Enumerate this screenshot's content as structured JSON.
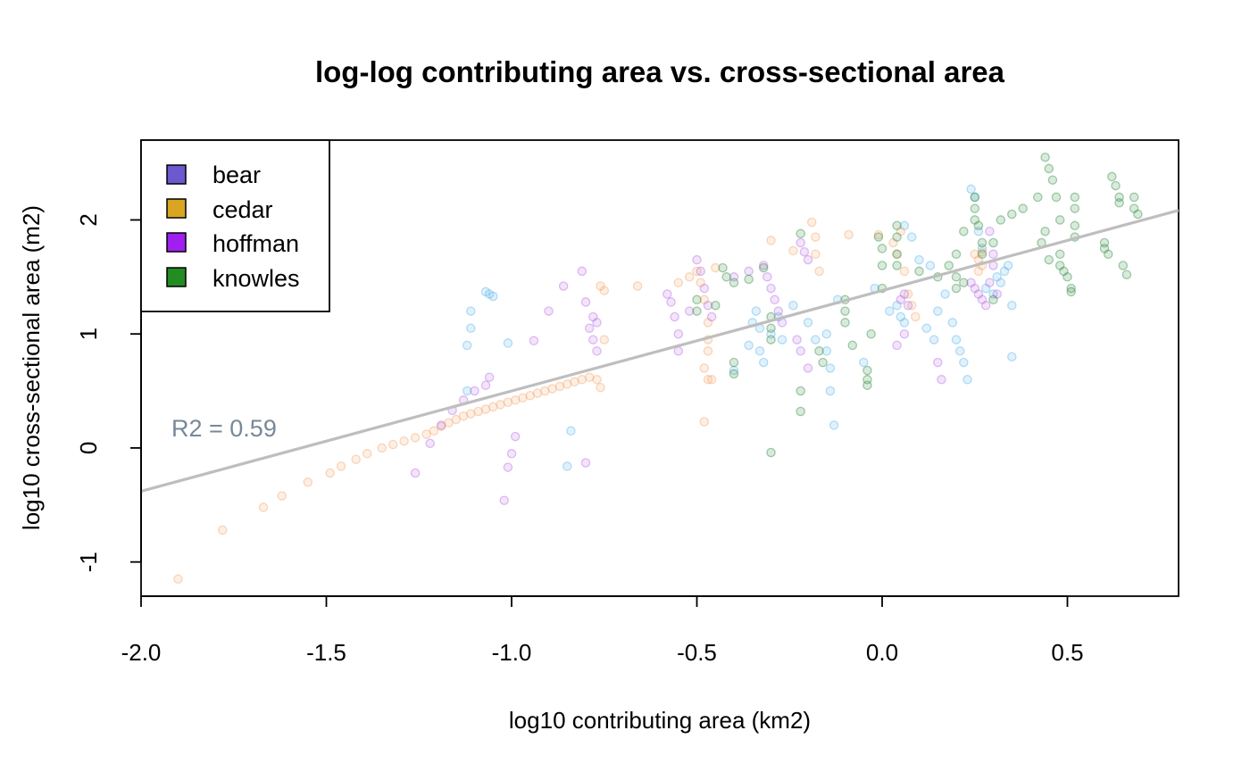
{
  "chart_data": {
    "type": "scatter",
    "title": "log-log contributing area vs. cross-sectional area",
    "xlabel": "log10 contributing area (km2)",
    "ylabel": "log10 cross-sectional area (m2)",
    "xlim": [
      -2.0,
      0.8
    ],
    "ylim": [
      -1.3,
      2.7
    ],
    "x_ticks": [
      -2.0,
      -1.5,
      -1.0,
      -0.5,
      0.0,
      0.5
    ],
    "x_tick_labels": [
      "-2.0",
      "-1.5",
      "-1.0",
      "-0.5",
      "0.0",
      "0.5"
    ],
    "y_ticks": [
      -1,
      0,
      1,
      2
    ],
    "y_tick_labels": [
      "-1",
      "0",
      "1",
      "2"
    ],
    "grid": false,
    "legend": {
      "position": "top-left",
      "entries": [
        {
          "label": "bear",
          "color": "#6A5ACD"
        },
        {
          "label": "cedar",
          "color": "#DAA520"
        },
        {
          "label": "hoffman",
          "color": "#A020F0"
        },
        {
          "label": "knowles",
          "color": "#228B22"
        }
      ]
    },
    "annotation": {
      "text": "R2 = 0.59",
      "color": "#778899"
    },
    "regression_line": {
      "intercept": 1.38,
      "slope": 0.88,
      "color": "#BEBEBE"
    },
    "point_alpha": 0.18,
    "series": [
      {
        "name": "bear",
        "color": "#56B4E9",
        "points": [
          [
            -1.07,
            1.37
          ],
          [
            -1.06,
            1.35
          ],
          [
            -1.05,
            1.33
          ],
          [
            -1.11,
            1.2
          ],
          [
            -1.11,
            1.05
          ],
          [
            -1.12,
            0.9
          ],
          [
            -1.01,
            0.92
          ],
          [
            -1.12,
            0.5
          ],
          [
            -0.84,
            0.15
          ],
          [
            -0.85,
            -0.16
          ],
          [
            -0.4,
            0.68
          ],
          [
            -0.36,
            0.9
          ],
          [
            -0.35,
            1.1
          ],
          [
            -0.34,
            1.2
          ],
          [
            -0.33,
            1.05
          ],
          [
            -0.33,
            0.85
          ],
          [
            -0.32,
            0.75
          ],
          [
            -0.3,
            1.0
          ],
          [
            -0.28,
            1.15
          ],
          [
            -0.27,
            0.95
          ],
          [
            -0.24,
            1.25
          ],
          [
            -0.2,
            1.1
          ],
          [
            -0.18,
            0.95
          ],
          [
            -0.15,
            1.0
          ],
          [
            -0.15,
            0.85
          ],
          [
            -0.14,
            0.7
          ],
          [
            -0.14,
            0.5
          ],
          [
            -0.13,
            0.2
          ],
          [
            -0.12,
            1.3
          ],
          [
            -0.05,
            0.75
          ],
          [
            0.02,
            1.2
          ],
          [
            0.04,
            1.25
          ],
          [
            0.05,
            1.15
          ],
          [
            0.06,
            1.1
          ],
          [
            0.08,
            1.85
          ],
          [
            0.1,
            1.65
          ],
          [
            0.12,
            1.05
          ],
          [
            0.14,
            0.95
          ],
          [
            0.15,
            1.2
          ],
          [
            0.17,
            1.35
          ],
          [
            0.19,
            1.1
          ],
          [
            0.2,
            0.95
          ],
          [
            0.21,
            0.85
          ],
          [
            0.22,
            0.75
          ],
          [
            0.23,
            0.6
          ],
          [
            0.24,
            2.27
          ],
          [
            0.25,
            2.2
          ],
          [
            0.26,
            1.9
          ],
          [
            0.27,
            1.75
          ],
          [
            0.28,
            1.4
          ],
          [
            0.3,
            1.35
          ],
          [
            0.31,
            1.5
          ],
          [
            0.32,
            1.45
          ],
          [
            0.33,
            1.55
          ],
          [
            0.34,
            1.6
          ],
          [
            0.35,
            1.25
          ],
          [
            0.35,
            0.8
          ],
          [
            0.06,
            1.95
          ],
          [
            -0.02,
            1.4
          ],
          [
            0.13,
            1.6
          ]
        ]
      },
      {
        "name": "cedar",
        "color": "#F4A46A",
        "points": [
          [
            -1.9,
            -1.15
          ],
          [
            -1.78,
            -0.72
          ],
          [
            -1.67,
            -0.52
          ],
          [
            -1.62,
            -0.42
          ],
          [
            -1.55,
            -0.3
          ],
          [
            -1.49,
            -0.22
          ],
          [
            -1.46,
            -0.16
          ],
          [
            -1.42,
            -0.1
          ],
          [
            -1.39,
            -0.05
          ],
          [
            -1.35,
            0.0
          ],
          [
            -1.32,
            0.03
          ],
          [
            -1.29,
            0.06
          ],
          [
            -1.26,
            0.09
          ],
          [
            -1.23,
            0.12
          ],
          [
            -1.21,
            0.15
          ],
          [
            -1.19,
            0.19
          ],
          [
            -1.17,
            0.22
          ],
          [
            -1.15,
            0.25
          ],
          [
            -1.13,
            0.28
          ],
          [
            -1.11,
            0.3
          ],
          [
            -1.09,
            0.32
          ],
          [
            -1.07,
            0.34
          ],
          [
            -1.05,
            0.36
          ],
          [
            -1.03,
            0.38
          ],
          [
            -1.01,
            0.4
          ],
          [
            -0.99,
            0.42
          ],
          [
            -0.97,
            0.44
          ],
          [
            -0.95,
            0.46
          ],
          [
            -0.93,
            0.48
          ],
          [
            -0.91,
            0.5
          ],
          [
            -0.89,
            0.52
          ],
          [
            -0.87,
            0.54
          ],
          [
            -0.85,
            0.56
          ],
          [
            -0.83,
            0.58
          ],
          [
            -0.81,
            0.6
          ],
          [
            -0.79,
            0.62
          ],
          [
            -0.77,
            0.6
          ],
          [
            -0.76,
            0.53
          ],
          [
            -0.76,
            1.42
          ],
          [
            -0.75,
            1.38
          ],
          [
            -0.75,
            0.95
          ],
          [
            -0.66,
            1.42
          ],
          [
            -0.55,
            1.45
          ],
          [
            -0.52,
            1.5
          ],
          [
            -0.5,
            1.55
          ],
          [
            -0.49,
            1.45
          ],
          [
            -0.48,
            1.3
          ],
          [
            -0.47,
            1.1
          ],
          [
            -0.47,
            0.95
          ],
          [
            -0.47,
            0.85
          ],
          [
            -0.48,
            0.7
          ],
          [
            -0.47,
            0.6
          ],
          [
            -0.46,
            0.6
          ],
          [
            -0.48,
            0.23
          ],
          [
            -0.45,
            1.58
          ],
          [
            -0.3,
            1.82
          ],
          [
            -0.24,
            1.73
          ],
          [
            -0.19,
            1.98
          ],
          [
            -0.18,
            1.85
          ],
          [
            -0.18,
            1.7
          ],
          [
            -0.17,
            1.55
          ],
          [
            -0.09,
            1.87
          ],
          [
            -0.01,
            1.87
          ],
          [
            0.03,
            1.8
          ],
          [
            0.04,
            1.7
          ],
          [
            0.06,
            1.55
          ],
          [
            0.07,
            1.35
          ],
          [
            0.08,
            1.25
          ],
          [
            0.09,
            1.15
          ],
          [
            0.25,
            1.7
          ],
          [
            0.26,
            1.65
          ],
          [
            0.27,
            1.6
          ],
          [
            0.26,
            1.55
          ],
          [
            0.27,
            1.72
          ],
          [
            0.05,
            1.9
          ]
        ]
      },
      {
        "name": "hoffman",
        "color": "#B56BE6",
        "points": [
          [
            -1.26,
            -0.22
          ],
          [
            -1.22,
            0.04
          ],
          [
            -1.19,
            0.2
          ],
          [
            -1.16,
            0.33
          ],
          [
            -1.13,
            0.42
          ],
          [
            -1.1,
            0.5
          ],
          [
            -1.07,
            0.55
          ],
          [
            -1.06,
            0.62
          ],
          [
            -1.02,
            -0.46
          ],
          [
            -1.01,
            -0.17
          ],
          [
            -1.0,
            -0.05
          ],
          [
            -0.99,
            0.1
          ],
          [
            -0.94,
            0.94
          ],
          [
            -0.9,
            1.2
          ],
          [
            -0.86,
            1.42
          ],
          [
            -0.81,
            1.55
          ],
          [
            -0.8,
            1.28
          ],
          [
            -0.79,
            1.05
          ],
          [
            -0.78,
            0.95
          ],
          [
            -0.77,
            0.85
          ],
          [
            -0.8,
            -0.13
          ],
          [
            -0.78,
            1.15
          ],
          [
            -0.77,
            1.1
          ],
          [
            -0.58,
            1.35
          ],
          [
            -0.57,
            1.28
          ],
          [
            -0.56,
            1.15
          ],
          [
            -0.55,
            1.0
          ],
          [
            -0.55,
            0.85
          ],
          [
            -0.52,
            1.2
          ],
          [
            -0.5,
            1.65
          ],
          [
            -0.49,
            1.55
          ],
          [
            -0.48,
            1.4
          ],
          [
            -0.47,
            1.25
          ],
          [
            -0.46,
            1.15
          ],
          [
            -0.4,
            1.5
          ],
          [
            -0.36,
            1.55
          ],
          [
            -0.32,
            1.6
          ],
          [
            -0.31,
            1.5
          ],
          [
            -0.3,
            1.4
          ],
          [
            -0.29,
            1.3
          ],
          [
            -0.28,
            1.2
          ],
          [
            -0.27,
            1.1
          ],
          [
            -0.22,
            1.8
          ],
          [
            -0.21,
            1.72
          ],
          [
            -0.2,
            1.65
          ],
          [
            -0.23,
            0.95
          ],
          [
            -0.22,
            0.85
          ],
          [
            -0.2,
            0.7
          ],
          [
            0.05,
            1.3
          ],
          [
            0.06,
            1.35
          ],
          [
            0.07,
            1.25
          ],
          [
            0.04,
            0.9
          ],
          [
            0.06,
            1.0
          ],
          [
            0.15,
            0.75
          ],
          [
            0.16,
            0.6
          ],
          [
            0.24,
            1.45
          ],
          [
            0.25,
            1.4
          ],
          [
            0.26,
            1.35
          ],
          [
            0.27,
            1.3
          ],
          [
            0.28,
            1.25
          ],
          [
            0.29,
            1.45
          ],
          [
            0.3,
            1.7
          ],
          [
            0.3,
            1.6
          ],
          [
            0.29,
            1.9
          ],
          [
            0.31,
            1.35
          ]
        ]
      },
      {
        "name": "knowles",
        "color": "#2E8B3E",
        "points": [
          [
            -0.5,
            1.3
          ],
          [
            -0.5,
            1.2
          ],
          [
            -0.45,
            1.25
          ],
          [
            -0.43,
            1.58
          ],
          [
            -0.42,
            1.5
          ],
          [
            -0.4,
            1.45
          ],
          [
            -0.4,
            0.75
          ],
          [
            -0.4,
            0.65
          ],
          [
            -0.36,
            1.48
          ],
          [
            -0.32,
            1.58
          ],
          [
            -0.3,
            1.15
          ],
          [
            -0.3,
            1.05
          ],
          [
            -0.3,
            0.95
          ],
          [
            -0.3,
            -0.04
          ],
          [
            -0.22,
            1.88
          ],
          [
            -0.22,
            0.5
          ],
          [
            -0.22,
            0.32
          ],
          [
            -0.17,
            0.85
          ],
          [
            -0.16,
            0.75
          ],
          [
            -0.1,
            1.3
          ],
          [
            -0.1,
            1.2
          ],
          [
            -0.1,
            1.1
          ],
          [
            -0.08,
            0.9
          ],
          [
            -0.04,
            0.68
          ],
          [
            -0.04,
            0.6
          ],
          [
            -0.04,
            0.55
          ],
          [
            -0.03,
            1.0
          ],
          [
            -0.01,
            1.85
          ],
          [
            0.0,
            1.75
          ],
          [
            0.0,
            1.6
          ],
          [
            0.0,
            1.4
          ],
          [
            0.04,
            1.95
          ],
          [
            0.04,
            1.85
          ],
          [
            0.04,
            1.7
          ],
          [
            0.04,
            1.6
          ],
          [
            0.1,
            1.55
          ],
          [
            0.15,
            1.5
          ],
          [
            0.18,
            1.6
          ],
          [
            0.2,
            1.7
          ],
          [
            0.2,
            1.5
          ],
          [
            0.2,
            1.4
          ],
          [
            0.22,
            1.9
          ],
          [
            0.25,
            2.2
          ],
          [
            0.25,
            2.1
          ],
          [
            0.25,
            2.0
          ],
          [
            0.26,
            1.95
          ],
          [
            0.27,
            1.8
          ],
          [
            0.27,
            1.7
          ],
          [
            0.3,
            1.8
          ],
          [
            0.32,
            2.0
          ],
          [
            0.35,
            2.05
          ],
          [
            0.38,
            2.1
          ],
          [
            0.42,
            2.2
          ],
          [
            0.43,
            1.8
          ],
          [
            0.44,
            1.9
          ],
          [
            0.44,
            2.55
          ],
          [
            0.45,
            2.45
          ],
          [
            0.46,
            2.35
          ],
          [
            0.47,
            2.2
          ],
          [
            0.48,
            2.0
          ],
          [
            0.48,
            1.7
          ],
          [
            0.48,
            1.6
          ],
          [
            0.49,
            1.55
          ],
          [
            0.5,
            1.5
          ],
          [
            0.51,
            1.4
          ],
          [
            0.51,
            1.37
          ],
          [
            0.52,
            2.2
          ],
          [
            0.52,
            2.1
          ],
          [
            0.52,
            1.95
          ],
          [
            0.52,
            1.85
          ],
          [
            0.6,
            1.8
          ],
          [
            0.6,
            1.75
          ],
          [
            0.61,
            1.7
          ],
          [
            0.62,
            2.38
          ],
          [
            0.63,
            2.3
          ],
          [
            0.64,
            2.2
          ],
          [
            0.64,
            2.15
          ],
          [
            0.65,
            1.6
          ],
          [
            0.66,
            1.52
          ],
          [
            0.68,
            2.2
          ],
          [
            0.68,
            2.1
          ],
          [
            0.69,
            2.05
          ],
          [
            0.45,
            1.65
          ],
          [
            0.3,
            1.3
          ],
          [
            0.22,
            1.45
          ]
        ]
      }
    ]
  }
}
